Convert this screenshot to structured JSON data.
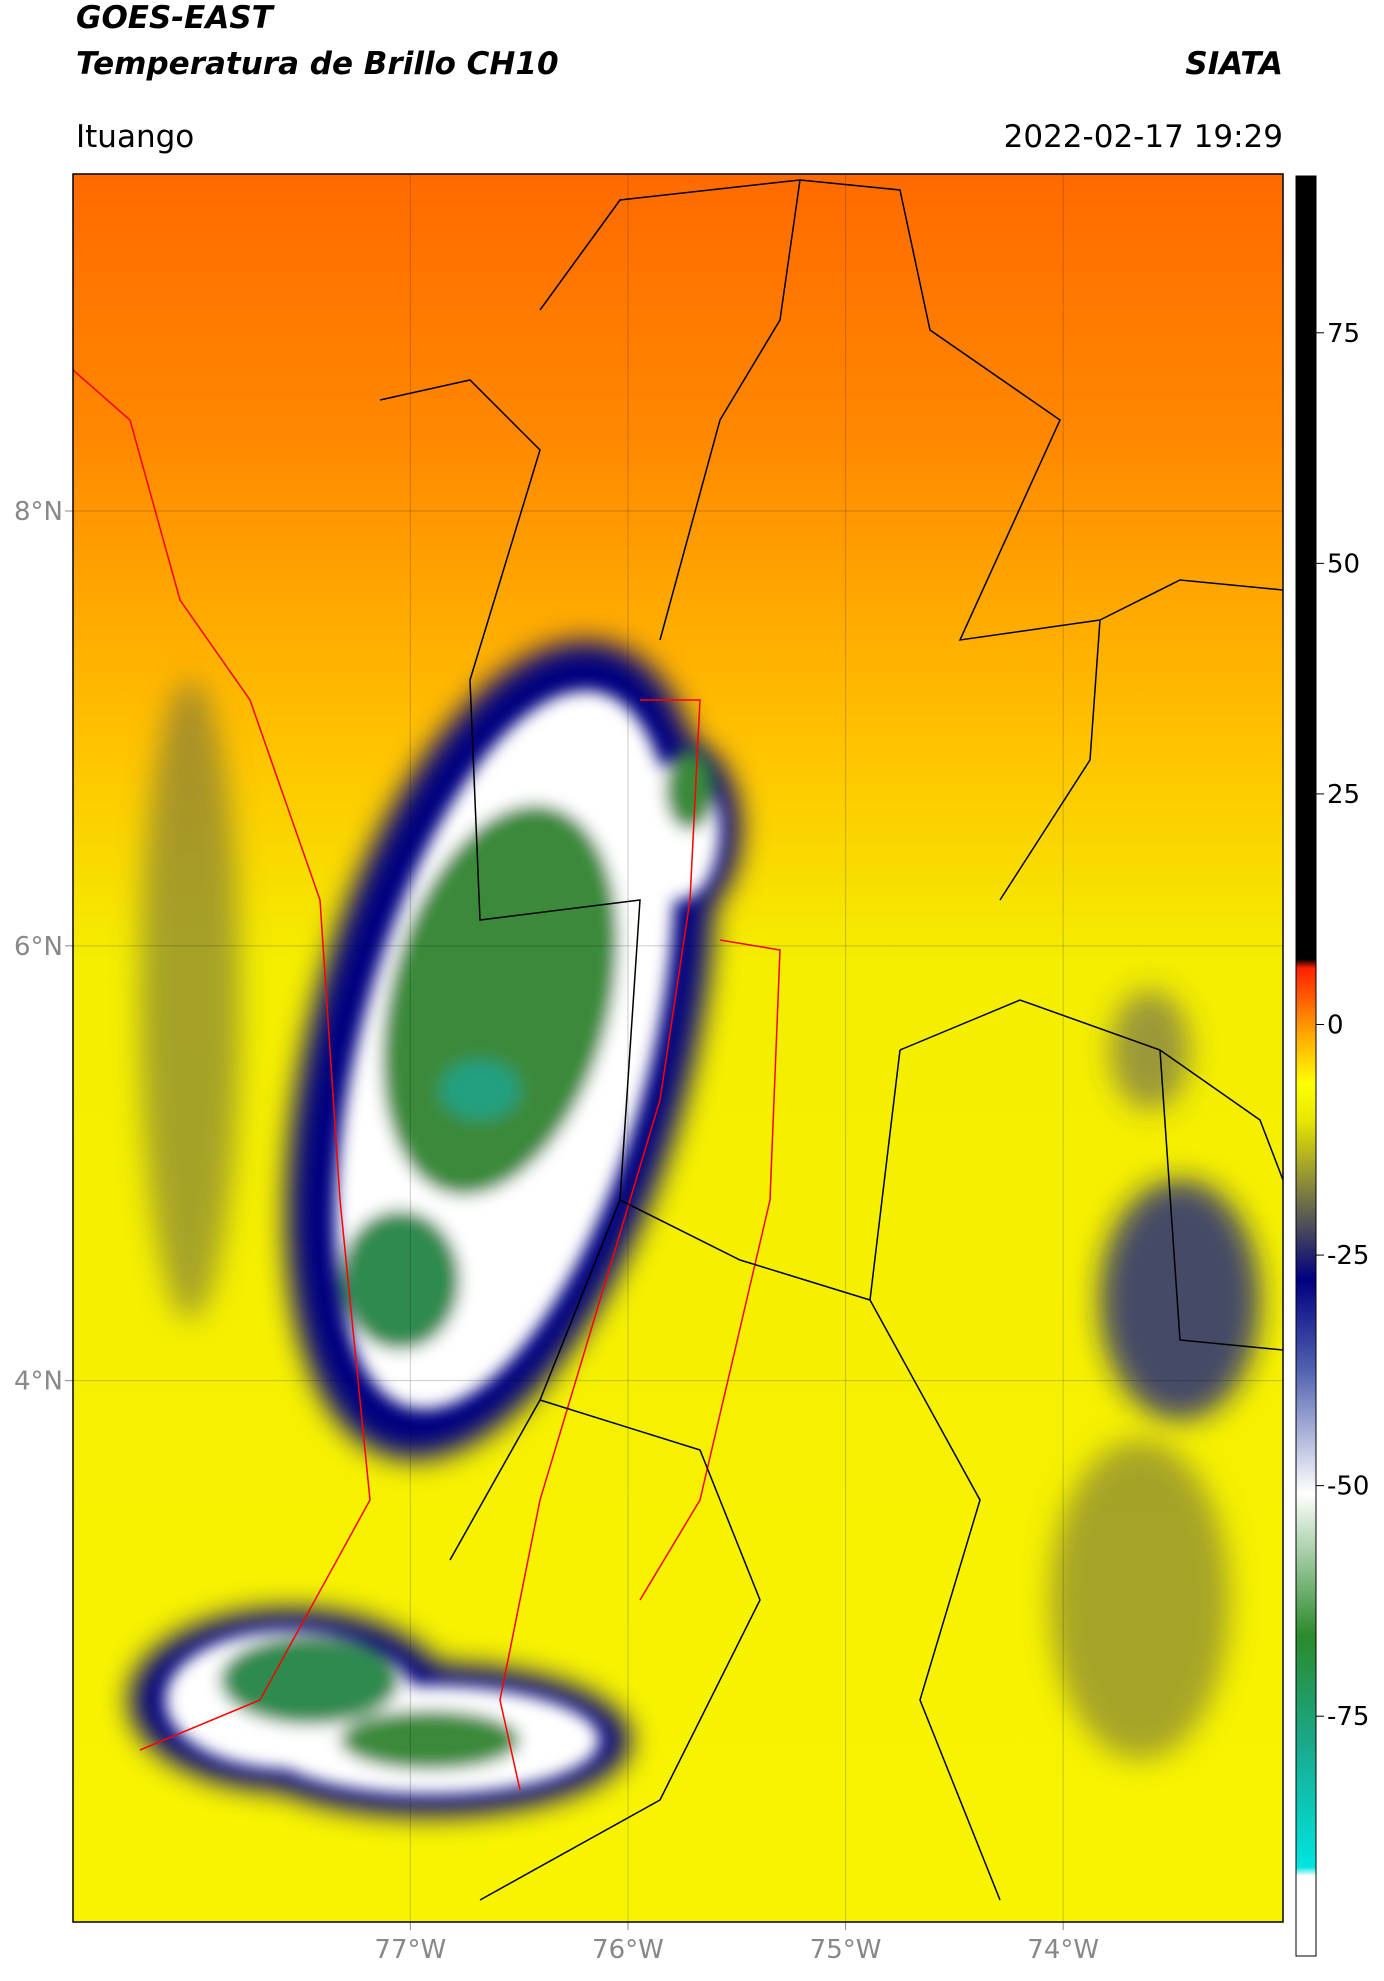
{
  "map": {
    "title": "GOES-EAST",
    "subtitle": "Temperatura de Brillo CH10",
    "source": "SIATA",
    "location": "Ituango",
    "datetime": "2022-02-17 19:29",
    "xlim": [
      -78.55,
      -72.99
    ],
    "ylim": [
      1.51,
      9.55
    ],
    "xticks": [
      {
        "value": -77,
        "label": "77°W"
      },
      {
        "value": -76,
        "label": "76°W"
      },
      {
        "value": -75,
        "label": "75°W"
      },
      {
        "value": -74,
        "label": "74°W"
      }
    ],
    "yticks": [
      {
        "value": 4,
        "label": "4°N"
      },
      {
        "value": 6,
        "label": "6°N"
      },
      {
        "value": 8,
        "label": "8°N"
      }
    ],
    "grid": true,
    "colorbar": {
      "lim": [
        -101,
        92
      ],
      "ticks": [
        -75,
        -50,
        -25,
        0,
        25,
        50,
        75
      ]
    }
  }
}
